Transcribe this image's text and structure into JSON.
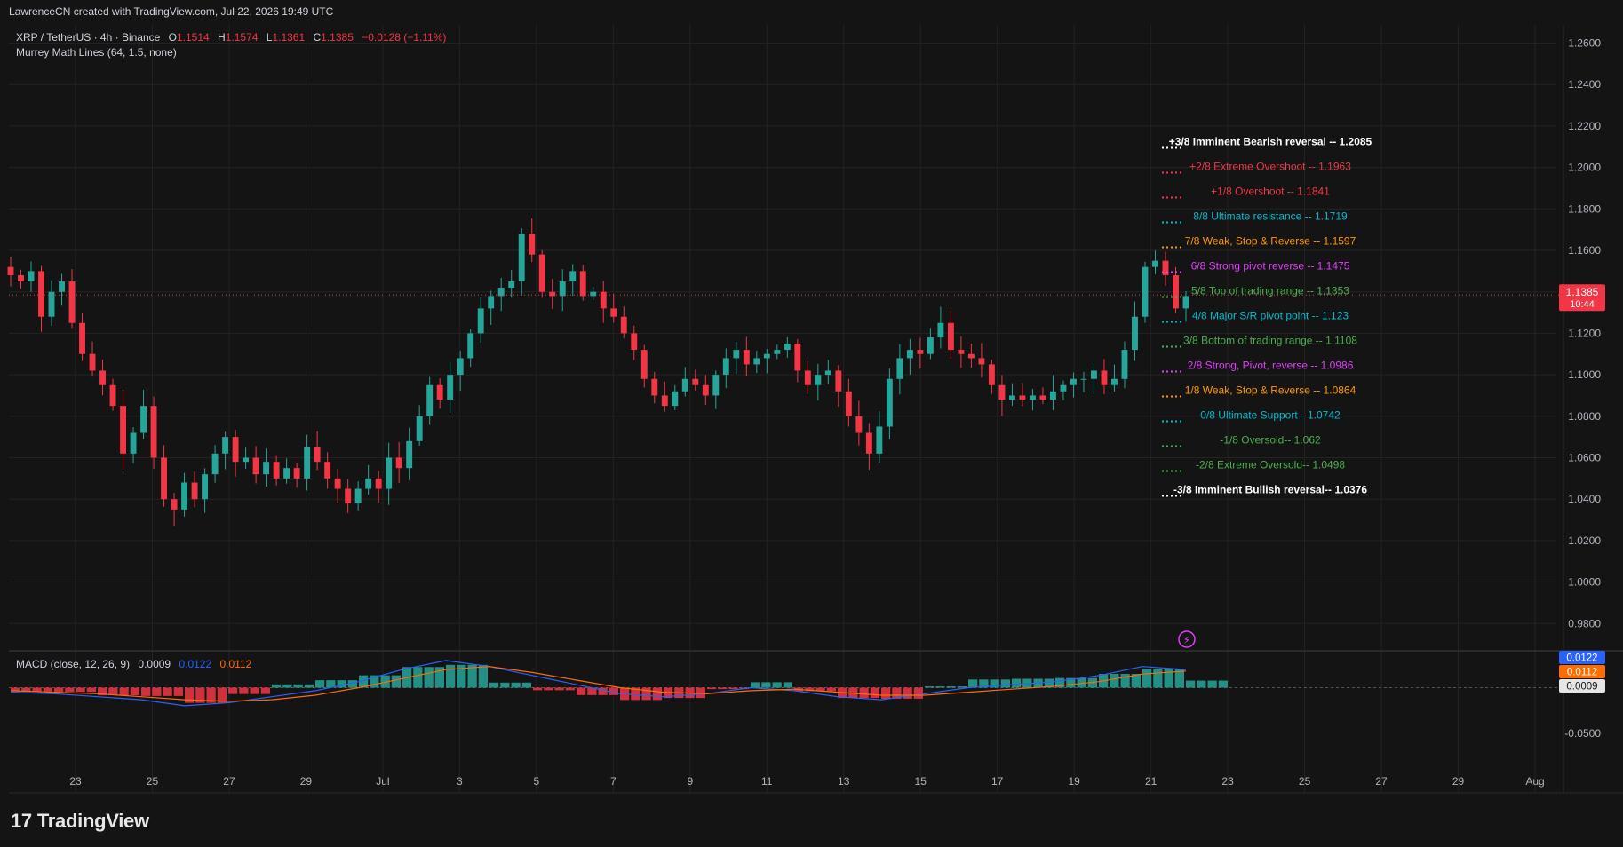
{
  "watermark_header": "LawrenceCN created with TradingView.com, Jul 22, 2026 19:49 UTC",
  "symbol_line": {
    "symbol": "XRP / TetherUS · 4h · Binance",
    "o_label": "O",
    "o": "1.1514",
    "h_label": "H",
    "h": "1.1574",
    "l_label": "L",
    "l": "1.1361",
    "c_label": "C",
    "c": "1.1385",
    "change": "−0.0128 (−1.11%)"
  },
  "indicator_label": "Murrey Math Lines (64, 1.5, none)",
  "macd_label": "MACD (close, 12, 26, 9)",
  "macd_values": {
    "macd": "0.0009",
    "signal": "0.0122",
    "hist": "0.0112"
  },
  "price_tag": {
    "price": "1.1385",
    "countdown": "10:44"
  },
  "macd_tags": [
    "0.0122",
    "0.0112",
    "0.0009"
  ],
  "logo_text": "TradingView",
  "colors": {
    "up": "#26a69a",
    "down": "#f23645",
    "bg": "#141414",
    "grid": "#232323",
    "macd": "#2962ff",
    "signal": "#ff6d00"
  },
  "chart_data": {
    "type": "candlestick",
    "y_axis_ticks": [
      "1.2600",
      "1.2400",
      "1.2200",
      "1.2000",
      "1.1800",
      "1.1600",
      "1.1400",
      "1.1200",
      "1.1000",
      "1.0800",
      "1.0600",
      "1.0400",
      "1.0200",
      "1.0000",
      "0.9800"
    ],
    "ylim": [
      0.97,
      1.27
    ],
    "x_axis_ticks": [
      "23",
      "25",
      "27",
      "29",
      "Jul",
      "3",
      "5",
      "7",
      "9",
      "11",
      "13",
      "15",
      "17",
      "19",
      "21",
      "23",
      "25",
      "27",
      "29",
      "Aug"
    ],
    "macd_axis_ticks": [
      "-0.0500"
    ],
    "murrey_lines": [
      {
        "label": "+3/8 Imminent Bearish reversal --",
        "value": "1.2085",
        "color": "#ffffff"
      },
      {
        "label": "+2/8 Extreme Overshoot --",
        "value": "1.1963",
        "color": "#f23645"
      },
      {
        "label": "+1/8 Overshoot --",
        "value": "1.1841",
        "color": "#f23645"
      },
      {
        "label": "8/8 Ultimate resistance --",
        "value": "1.1719",
        "color": "#00bcd4"
      },
      {
        "label": "7/8 Weak, Stop & Reverse --",
        "value": "1.1597",
        "color": "#ff9800"
      },
      {
        "label": "6/8 Strong pivot reverse --",
        "value": "1.1475",
        "color": "#e040fb"
      },
      {
        "label": "5/8 Top of trading range --",
        "value": "1.1353",
        "color": "#4caf50"
      },
      {
        "label": "4/8 Major S/R pivot point --",
        "value": "1.123",
        "color": "#00bcd4"
      },
      {
        "label": "3/8 Bottom of trading range --",
        "value": "1.1108",
        "color": "#4caf50"
      },
      {
        "label": "2/8 Strong, Pivot, reverse --",
        "value": "1.0986",
        "color": "#e040fb"
      },
      {
        "label": "1/8 Weak, Stop & Reverse --",
        "value": "1.0864",
        "color": "#ff9800"
      },
      {
        "label": "0/8 Ultimate Support--",
        "value": "1.0742",
        "color": "#00bcd4"
      },
      {
        "label": "-1/8 Oversold--",
        "value": "1.062",
        "color": "#4caf50"
      },
      {
        "label": "-2/8 Extreme Oversold--",
        "value": "1.0498",
        "color": "#4caf50"
      },
      {
        "label": "-3/8 Imminent Bullish reversal--",
        "value": "1.0376",
        "color": "#ffffff"
      }
    ],
    "close_path": [
      1.148,
      1.145,
      1.15,
      1.128,
      1.14,
      1.145,
      1.125,
      1.11,
      1.102,
      1.095,
      1.085,
      1.062,
      1.072,
      1.085,
      1.06,
      1.04,
      1.035,
      1.048,
      1.04,
      1.052,
      1.062,
      1.07,
      1.058,
      1.06,
      1.052,
      1.058,
      1.05,
      1.055,
      1.05,
      1.065,
      1.058,
      1.05,
      1.045,
      1.038,
      1.045,
      1.05,
      1.045,
      1.06,
      1.055,
      1.068,
      1.08,
      1.095,
      1.088,
      1.1,
      1.108,
      1.12,
      1.132,
      1.138,
      1.142,
      1.145,
      1.168,
      1.158,
      1.14,
      1.138,
      1.145,
      1.15,
      1.138,
      1.14,
      1.132,
      1.128,
      1.12,
      1.112,
      1.098,
      1.09,
      1.085,
      1.092,
      1.098,
      1.095,
      1.09,
      1.1,
      1.108,
      1.112,
      1.105,
      1.108,
      1.11,
      1.112,
      1.115,
      1.102,
      1.095,
      1.1,
      1.102,
      1.092,
      1.08,
      1.072,
      1.062,
      1.075,
      1.098,
      1.108,
      1.112,
      1.11,
      1.118,
      1.125,
      1.112,
      1.11,
      1.108,
      1.105,
      1.095,
      1.088,
      1.09,
      1.088,
      1.09,
      1.088,
      1.092,
      1.095,
      1.098,
      1.098,
      1.102,
      1.095,
      1.098,
      1.112,
      1.128,
      1.152,
      1.155,
      1.148,
      1.132,
      1.138
    ],
    "macd_path": [
      -0.003,
      -0.004,
      -0.006,
      -0.008,
      -0.012,
      -0.01,
      -0.006,
      -0.002,
      0.004,
      0.012,
      0.018,
      0.014,
      0.008,
      0.002,
      -0.004,
      -0.006,
      -0.004,
      0.0,
      -0.002,
      -0.006,
      -0.008,
      -0.004,
      0.0,
      0.002,
      0.004,
      0.008,
      0.014,
      0.012
    ],
    "signal_path": [
      -0.002,
      -0.003,
      -0.004,
      -0.006,
      -0.008,
      -0.009,
      -0.008,
      -0.005,
      0.0,
      0.006,
      0.012,
      0.014,
      0.01,
      0.005,
      0.0,
      -0.003,
      -0.004,
      -0.002,
      -0.001,
      -0.003,
      -0.005,
      -0.005,
      -0.003,
      -0.001,
      0.001,
      0.004,
      0.009,
      0.011
    ]
  }
}
